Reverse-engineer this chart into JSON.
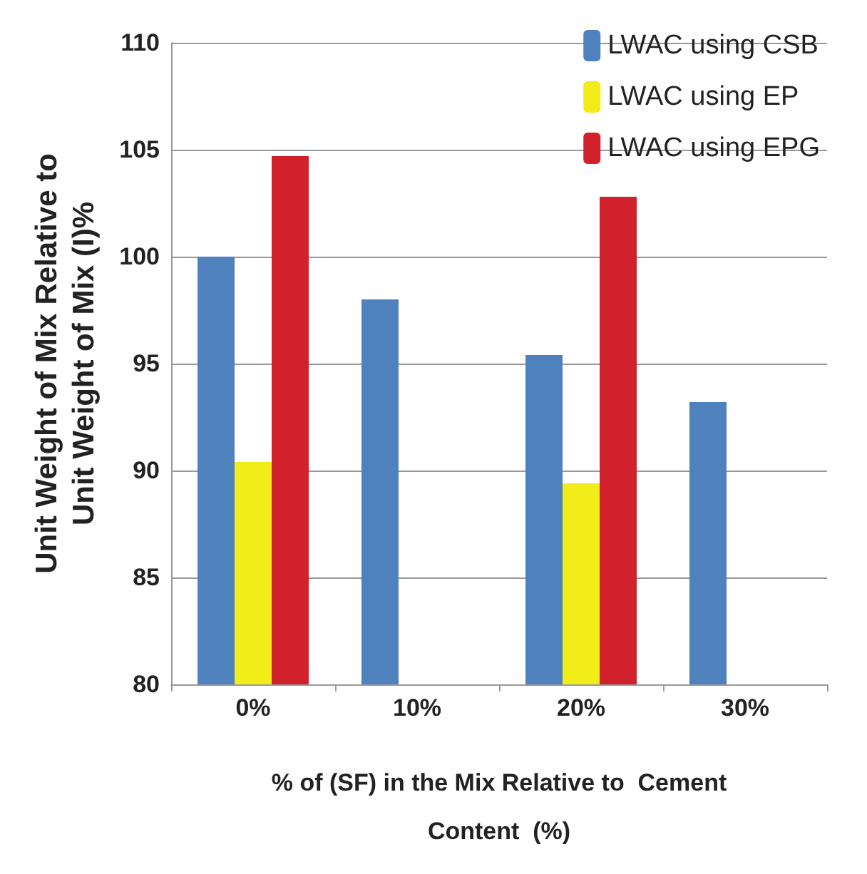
{
  "chart_data": {
    "type": "bar",
    "xlabel": "% of (SF) in the Mix Relative to  Cement\nContent  (%)",
    "ylabel": "Unit Weight of Mix Relative to\nUnit Weight of Mix (I)%",
    "categories": [
      "0%",
      "10%",
      "20%",
      "30%"
    ],
    "series": [
      {
        "name": "LWAC using CSB",
        "color": "#4f81bd",
        "values": [
          100,
          98,
          95.4,
          93.2
        ]
      },
      {
        "name": "LWAC using EP",
        "color": "#f2ec18",
        "values": [
          90.4,
          null,
          89.4,
          null
        ]
      },
      {
        "name": "LWAC using EPG",
        "color": "#d0212c",
        "values": [
          104.7,
          null,
          102.8,
          null
        ]
      }
    ],
    "ylim": [
      80,
      110
    ],
    "yticks": [
      80,
      85,
      90,
      95,
      100,
      105,
      110
    ],
    "grid": "y",
    "legend": "top right"
  }
}
